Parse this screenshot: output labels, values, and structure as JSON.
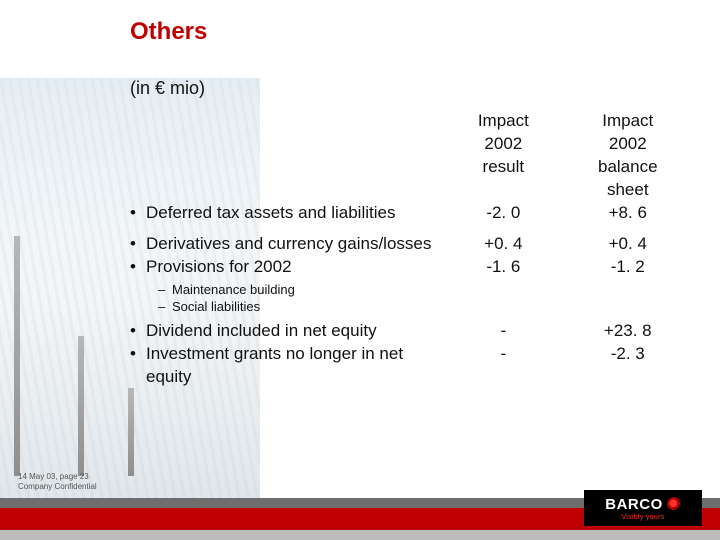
{
  "title": "Others",
  "unit": "(in € mio)",
  "columns": {
    "c2": "Impact\n2002\nresult",
    "c3": "Impact\n2002\nbalance\nsheet"
  },
  "rows": [
    {
      "label": "Deferred tax assets and liabilities",
      "v1": "-2. 0",
      "v2": "+8. 6"
    },
    {
      "label": "Derivatives and currency gains/losses",
      "v1": "+0. 4",
      "v2": "+0. 4"
    },
    {
      "label": "Provisions for 2002",
      "v1": "-1. 6",
      "v2": "-1. 2",
      "sub": [
        "Maintenance building",
        "Social liabilities"
      ]
    },
    {
      "label": "Dividend included in net equity",
      "v1": "-",
      "v2": "+23. 8"
    },
    {
      "label": "Investment grants no longer in net equity",
      "v1": "-",
      "v2": "-2. 3"
    }
  ],
  "footer": {
    "line1": "14 May 03, page 23",
    "line2": "Company Confidential"
  },
  "logo": {
    "word": "BARCO",
    "tag": "Visibly yours"
  },
  "colors": {
    "title": "#c00000",
    "bar_red": "#c00000",
    "bar_dark": "#6e6e6e",
    "bar_light": "#bcbcbc",
    "logo_bg": "#000000"
  }
}
